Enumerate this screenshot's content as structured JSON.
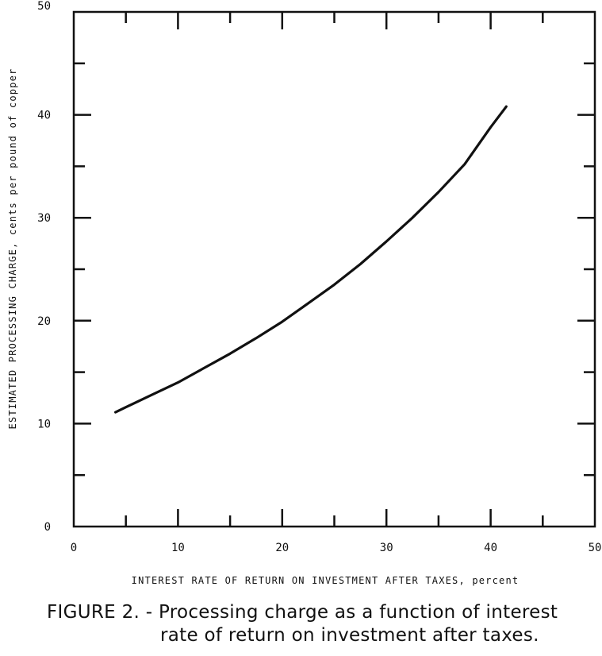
{
  "chart_data": {
    "type": "line",
    "title": "",
    "xlabel": "INTEREST RATE OF RETURN ON INVESTMENT AFTER TAXES, percent",
    "ylabel": "ESTIMATED PROCESSING CHARGE, cents per pound of copper",
    "xlim": [
      0,
      50
    ],
    "ylim": [
      0,
      50
    ],
    "x_ticks": [
      0,
      10,
      20,
      30,
      40,
      50
    ],
    "y_ticks": [
      0,
      10,
      20,
      30,
      40,
      50
    ],
    "x_tick_labels": [
      "0",
      "10",
      "20",
      "30",
      "40",
      "50"
    ],
    "y_tick_labels": [
      "0",
      "10",
      "20",
      "30",
      "40",
      "50"
    ],
    "grid": false,
    "series": [
      {
        "x": [
          4,
          5,
          7.5,
          10,
          12.5,
          15,
          17.5,
          20,
          22.5,
          25,
          27.5,
          30,
          32.5,
          35,
          37.5,
          40,
          41.5
        ],
        "y": [
          11.1,
          11.6,
          12.8,
          14.0,
          15.4,
          16.8,
          18.3,
          19.9,
          21.7,
          23.5,
          25.5,
          27.7,
          30.0,
          32.5,
          35.2,
          38.8,
          40.8
        ]
      }
    ]
  },
  "caption": {
    "line1": "FIGURE 2. - Processing charge as a function of interest",
    "line2": "rate of return on investment after taxes."
  },
  "colors": {
    "ink": "#111111",
    "background": "#ffffff"
  }
}
